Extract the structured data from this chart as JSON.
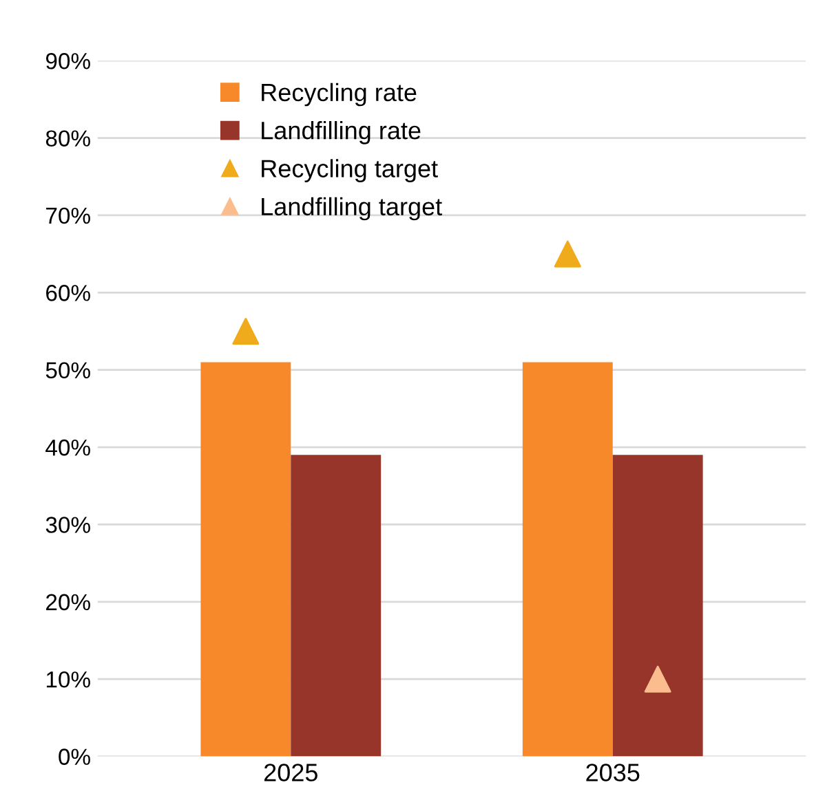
{
  "chart_data": {
    "type": "bar",
    "categories": [
      "2025",
      "2035"
    ],
    "series": [
      {
        "name": "Recycling rate",
        "color": "#f7892b",
        "values": [
          51,
          51
        ]
      },
      {
        "name": "Landfilling rate",
        "color": "#98352b",
        "values": [
          39,
          39
        ]
      },
      {
        "name": "Recycling target",
        "type": "scatter",
        "color": "#efab1c",
        "values": [
          55,
          65
        ]
      },
      {
        "name": "Landfilling target",
        "type": "scatter",
        "color": "#fbbd8e",
        "values": [
          null,
          10
        ]
      }
    ],
    "ylim": [
      0,
      90
    ],
    "yticks": [
      {
        "value": 0,
        "label": "0%"
      },
      {
        "value": 10,
        "label": "10%"
      },
      {
        "value": 20,
        "label": "20%"
      },
      {
        "value": 30,
        "label": "30%"
      },
      {
        "value": 40,
        "label": "40%"
      },
      {
        "value": 50,
        "label": "50%"
      },
      {
        "value": 60,
        "label": "60%"
      },
      {
        "value": 70,
        "label": "70%"
      },
      {
        "value": 80,
        "label": "80%"
      },
      {
        "value": 90,
        "label": "90%"
      }
    ],
    "grid": "y",
    "legend": "top left",
    "marker": "triangle"
  }
}
